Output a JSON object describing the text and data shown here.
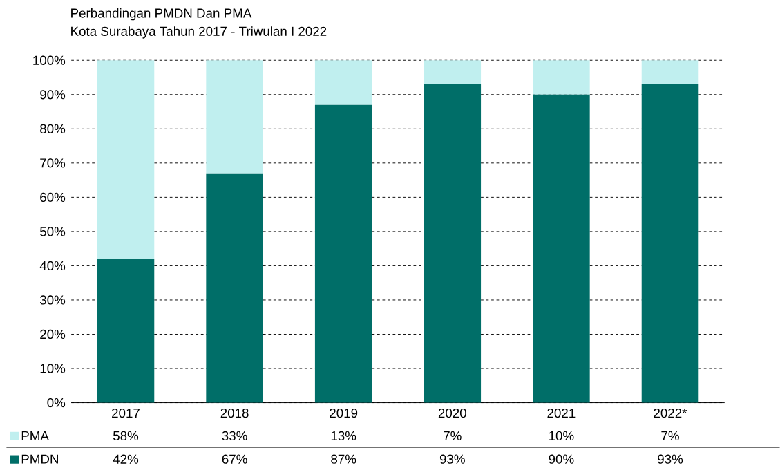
{
  "chart_data": {
    "type": "bar",
    "stacked": true,
    "title": "Perbandingan PMDN Dan PMA",
    "subtitle": "Kota Surabaya Tahun 2017 - Triwulan I 2022",
    "categories": [
      "2017",
      "2018",
      "2019",
      "2020",
      "2021",
      "2022*"
    ],
    "series": [
      {
        "name": "PMDN",
        "color": "#006e68",
        "values": [
          42,
          67,
          87,
          93,
          90,
          93
        ],
        "value_labels": [
          "42%",
          "67%",
          "87%",
          "93%",
          "90%",
          "93%"
        ]
      },
      {
        "name": "PMA",
        "color": "#c0efef",
        "values": [
          58,
          33,
          13,
          7,
          10,
          7
        ],
        "value_labels": [
          "58%",
          "33%",
          "13%",
          "7%",
          "10%",
          "7%"
        ]
      }
    ],
    "ylim": [
      0,
      100
    ],
    "yticks": [
      {
        "value": 0,
        "label": "0%"
      },
      {
        "value": 10,
        "label": "10%"
      },
      {
        "value": 20,
        "label": "20%"
      },
      {
        "value": 30,
        "label": "30%"
      },
      {
        "value": 40,
        "label": "40%"
      },
      {
        "value": 50,
        "label": "50%"
      },
      {
        "value": 60,
        "label": "60%"
      },
      {
        "value": 70,
        "label": "70%"
      },
      {
        "value": 80,
        "label": "80%"
      },
      {
        "value": 90,
        "label": "90%"
      },
      {
        "value": 100,
        "label": "100%"
      }
    ],
    "grid": "y",
    "legend": "bottom"
  }
}
